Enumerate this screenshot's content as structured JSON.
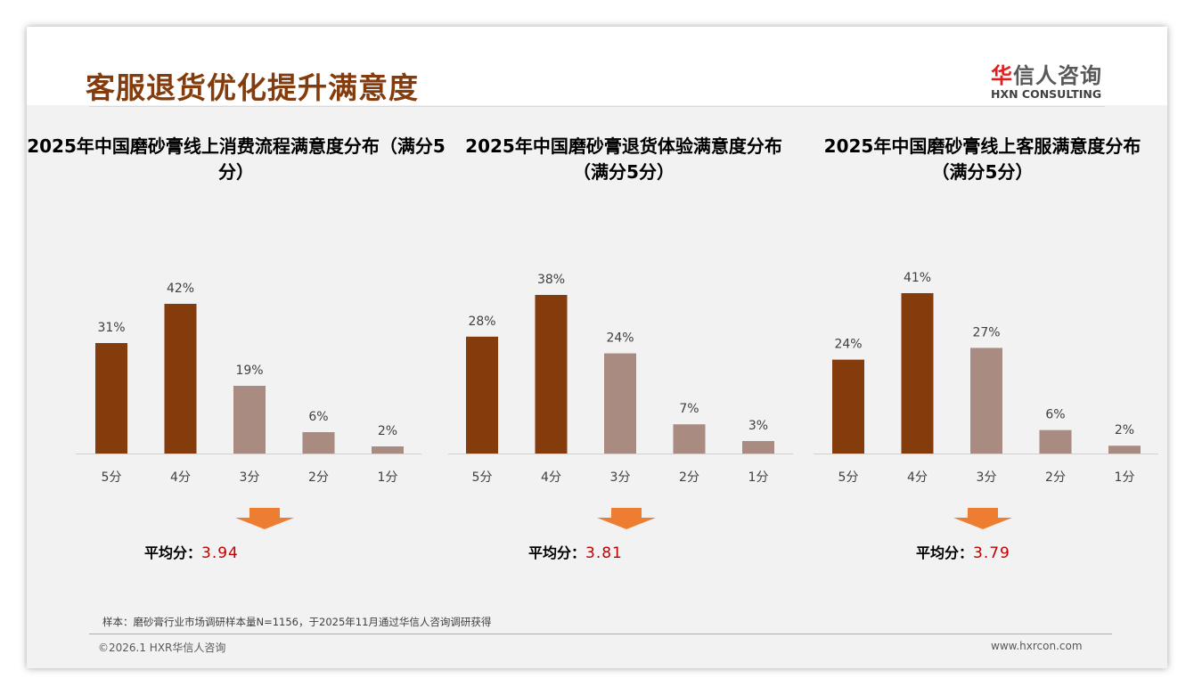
{
  "header": {
    "title": "客服退货优化提升满意度",
    "logo_cn_first": "华",
    "logo_cn_rest": "信人咨询",
    "logo_en": "HXN CONSULTING"
  },
  "colors": {
    "dark": "#843c0c",
    "light": "#a98b82",
    "arrow": "#ed7d31"
  },
  "chart_data": [
    {
      "type": "bar",
      "title": "2025年中国磨砂膏线上消费流程满意度分布（满分5分）",
      "categories": [
        "5分",
        "4分",
        "3分",
        "2分",
        "1分"
      ],
      "values": [
        31,
        42,
        19,
        6,
        2
      ],
      "labels": [
        "31%",
        "42%",
        "19%",
        "6%",
        "2%"
      ],
      "avg_label": "平均分：",
      "avg": "3.94"
    },
    {
      "type": "bar",
      "title": "2025年中国磨砂膏退货体验满意度分布（满分5分）",
      "categories": [
        "5分",
        "4分",
        "3分",
        "2分",
        "1分"
      ],
      "values": [
        28,
        38,
        24,
        7,
        3
      ],
      "labels": [
        "28%",
        "38%",
        "24%",
        "7%",
        "3%"
      ],
      "avg_label": "平均分：",
      "avg": "3.81"
    },
    {
      "type": "bar",
      "title": "2025年中国磨砂膏线上客服满意度分布（满分5分）",
      "categories": [
        "5分",
        "4分",
        "3分",
        "2分",
        "1分"
      ],
      "values": [
        24,
        41,
        27,
        6,
        2
      ],
      "labels": [
        "24%",
        "41%",
        "27%",
        "6%",
        "2%"
      ],
      "avg_label": "平均分：",
      "avg": "3.79"
    }
  ],
  "footer": {
    "note": "样本：磨砂膏行业市场调研样本量N=1156，于2025年11月通过华信人咨询调研获得",
    "copyright": "©2026.1 HXR华信人咨询",
    "url": "www.hxrcon.com"
  }
}
